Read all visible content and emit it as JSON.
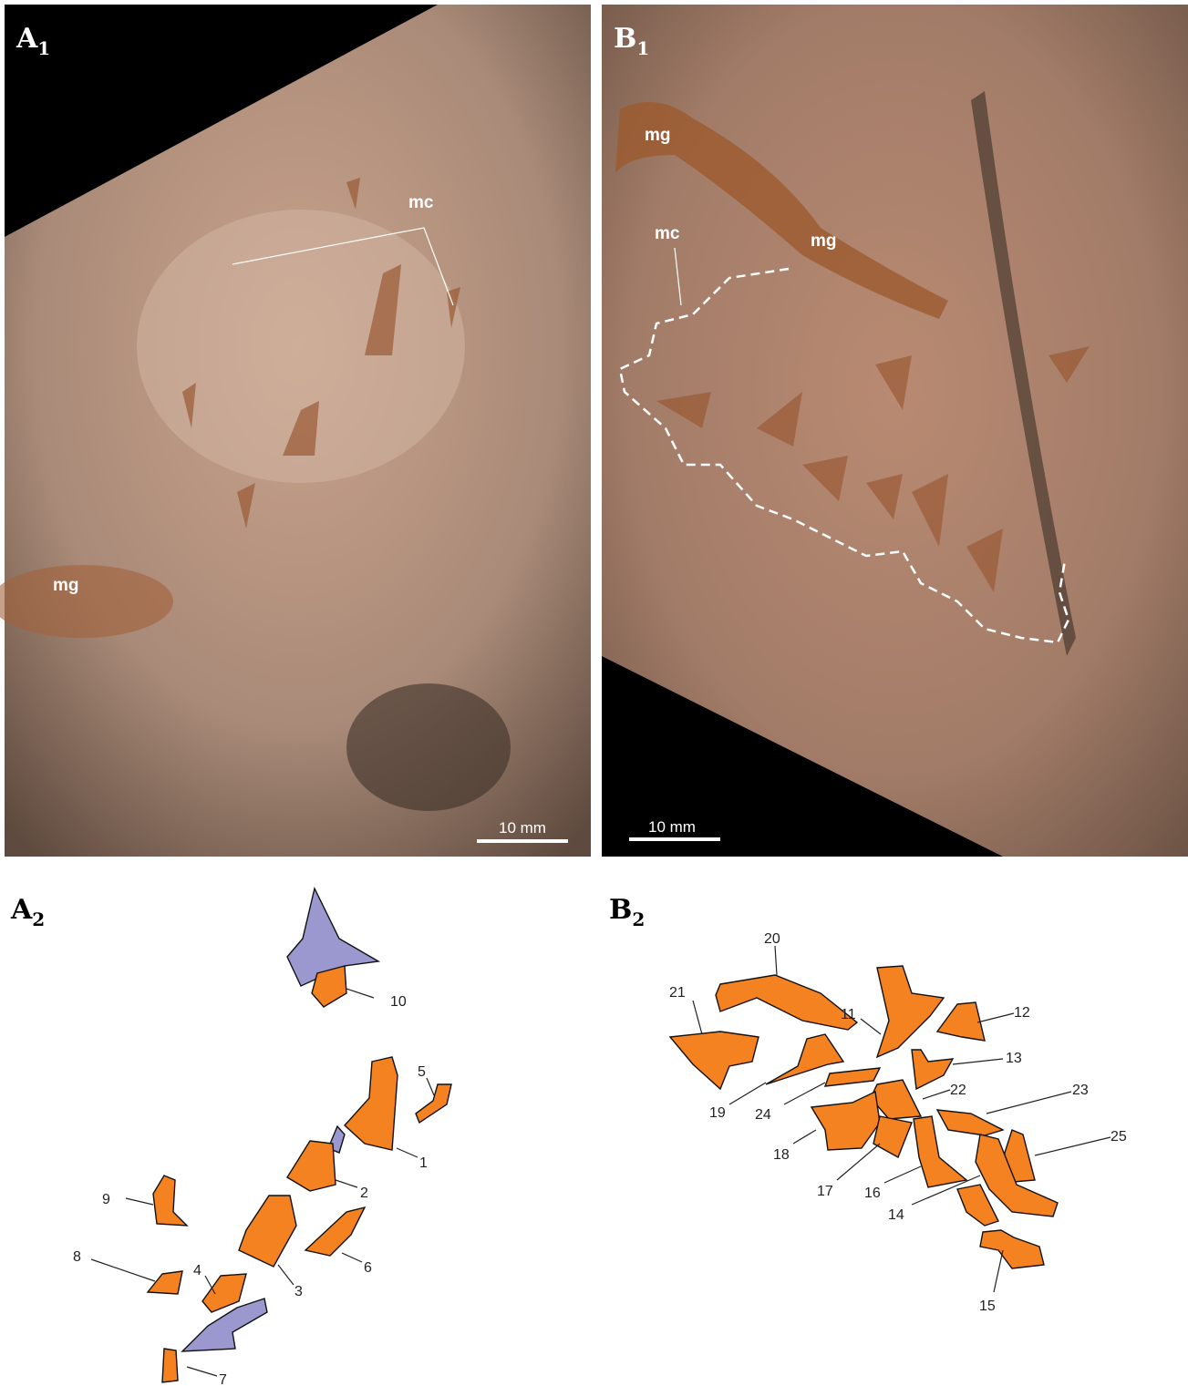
{
  "photos": [
    {
      "label": {
        "letter": "A",
        "sub": "1"
      },
      "annotations": [
        "mc",
        "mg"
      ],
      "scale_bar": "10 mm"
    },
    {
      "label": {
        "letter": "B",
        "sub": "1"
      },
      "annotations": [
        "mg",
        "mg",
        "mc"
      ],
      "scale_bar": "10 mm"
    }
  ],
  "drawings": [
    {
      "label": {
        "letter": "A",
        "sub": "2"
      },
      "numbers": [
        "10",
        "1",
        "5",
        "2",
        "9",
        "3",
        "6",
        "4",
        "8",
        "7"
      ]
    },
    {
      "label": {
        "letter": "B",
        "sub": "2"
      },
      "numbers": [
        "20",
        "21",
        "11",
        "12",
        "13",
        "19",
        "24",
        "22",
        "23",
        "18",
        "25",
        "17",
        "16",
        "14",
        "15"
      ]
    }
  ]
}
